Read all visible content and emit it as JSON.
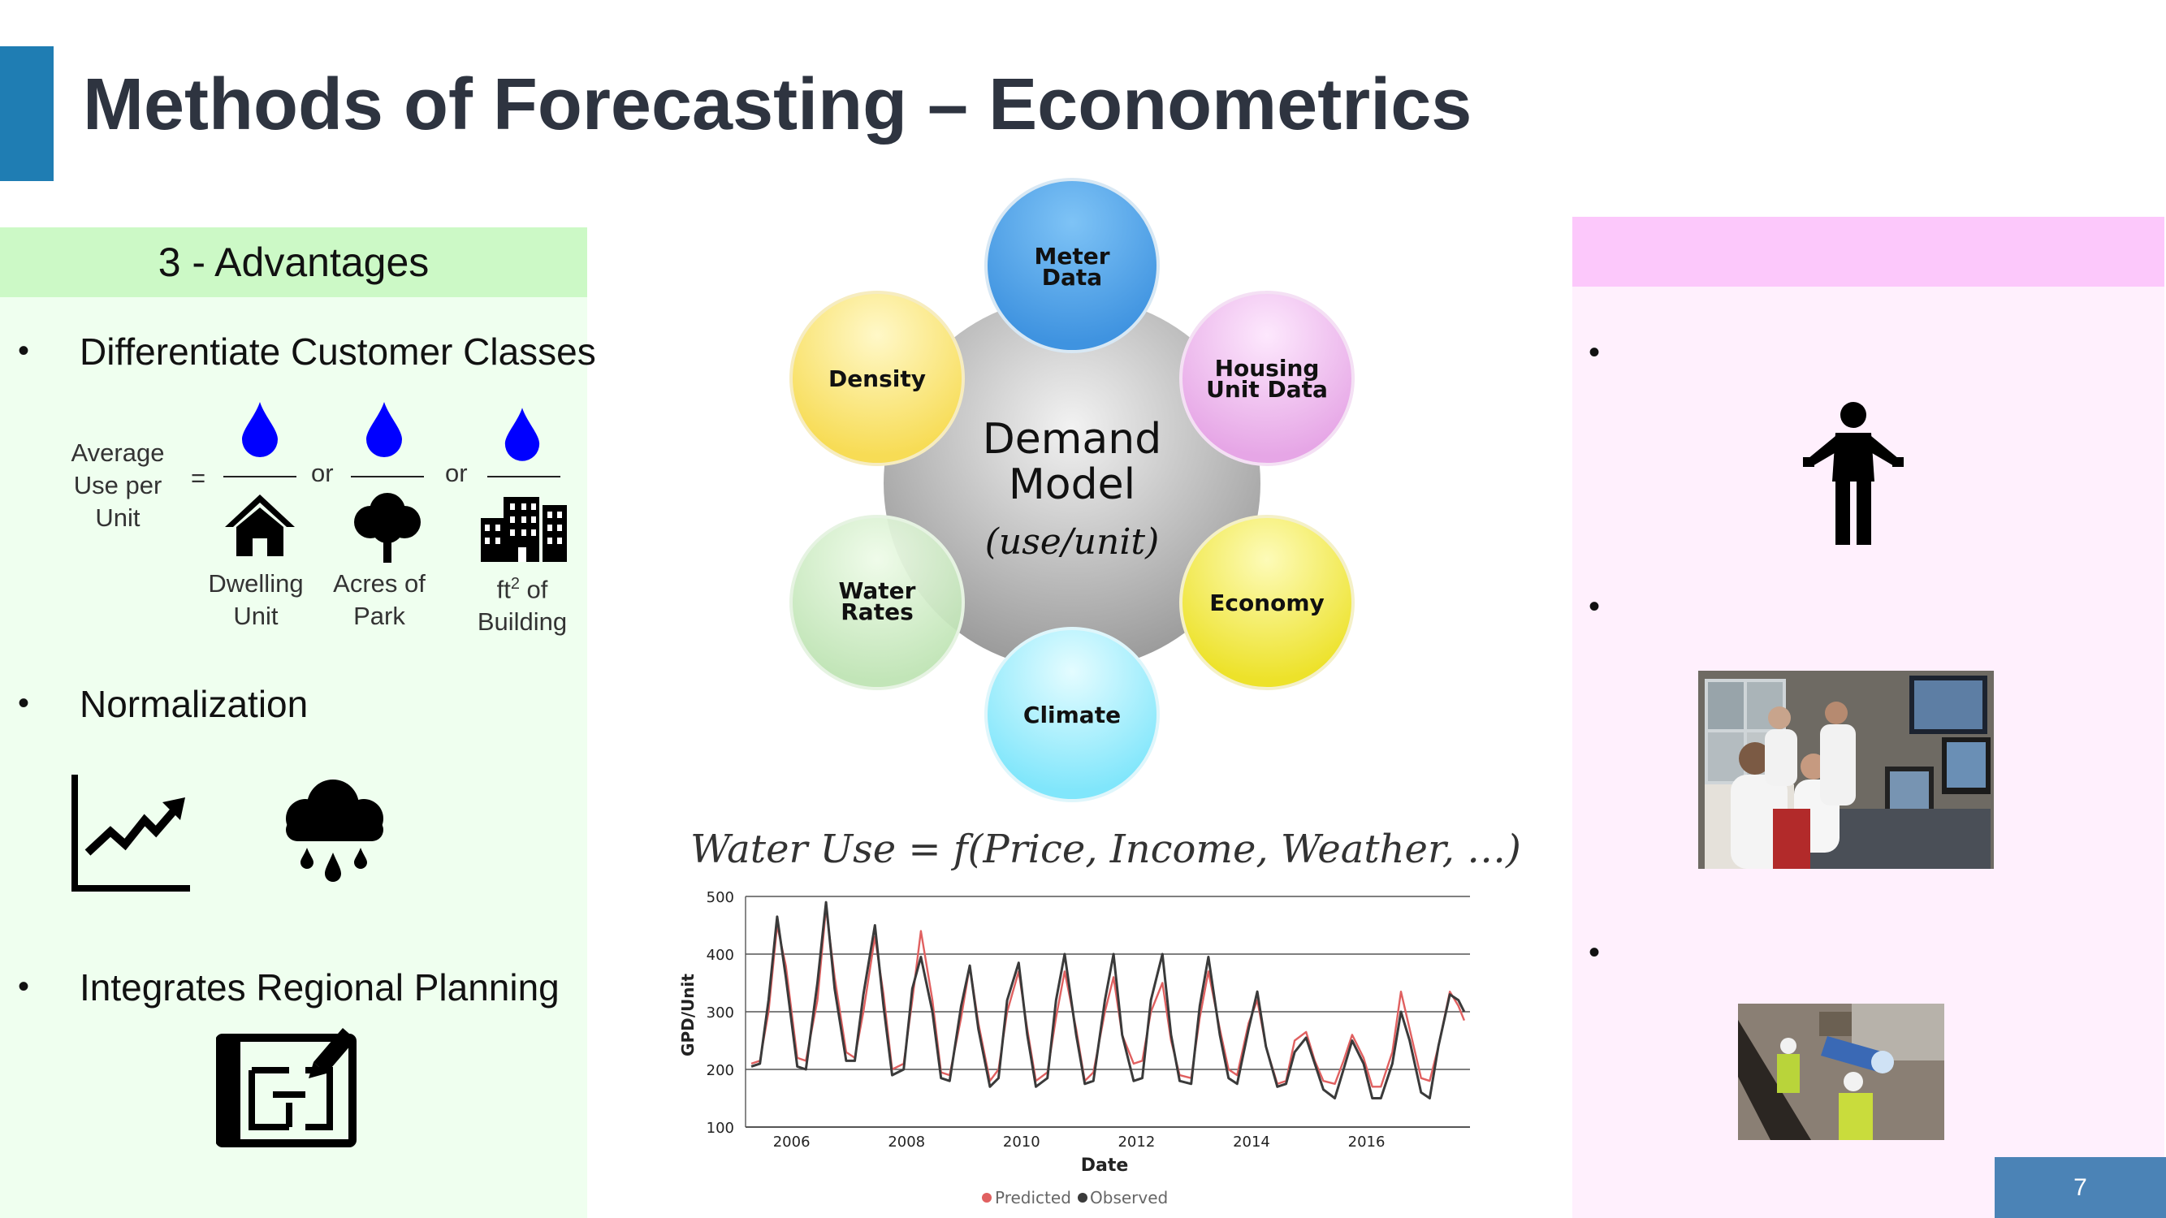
{
  "slide": {
    "title": "Methods of Forecasting – Econometrics",
    "page_number": "7"
  },
  "advantages": {
    "heading": "3 - Advantages",
    "items": [
      "Differentiate Customer Classes",
      "Normalization",
      "Integrates Regional Planning"
    ],
    "avg_use": {
      "line1": "Average",
      "line2": "Use per",
      "line3": "Unit"
    },
    "equals": "=",
    "or": "or",
    "units": [
      {
        "line1": "Dwelling",
        "line2": "Unit"
      },
      {
        "line1": "Acres of",
        "line2": "Park"
      },
      {
        "line1": "ft",
        "sup": "2",
        "line1b": " of",
        "line2": "Building"
      }
    ],
    "colors": {
      "drop": "#0000ff",
      "heading_bg": "#ccf9c6",
      "panel_bg": "#efffef"
    }
  },
  "demand_model": {
    "center": {
      "line1": "Demand",
      "line2": "Model",
      "line3": "(use/unit)"
    },
    "factors": [
      {
        "line1": "Meter",
        "line2": "Data",
        "color": "#4ba3e6"
      },
      {
        "line1": "Housing",
        "line2": "Unit Data",
        "color": "#eeb6ee"
      },
      {
        "line1": "Economy",
        "line2": "",
        "color": "#f0ec2e"
      },
      {
        "line1": "Climate",
        "line2": "",
        "color": "#8eecfb"
      },
      {
        "line1": "Water",
        "line2": "Rates",
        "color": "#c7eac0"
      },
      {
        "line1": "Density",
        "line2": "",
        "color": "#fbe76a"
      }
    ]
  },
  "formula": "Water Use = f(Price, Income, Weather, …)",
  "chart_data": {
    "type": "line",
    "xlabel": "Date",
    "ylabel": "GPD/Unit",
    "ylim": [
      100,
      500
    ],
    "yticks": [
      100,
      200,
      300,
      400,
      500
    ],
    "xticks": [
      2006,
      2008,
      2010,
      2012,
      2014,
      2016
    ],
    "xlim": [
      2005.2,
      2017.8
    ],
    "grid": true,
    "legend_placement": "bottom",
    "series": [
      {
        "name": "Predicted",
        "color": "#e06060",
        "x": [
          2005.3,
          2005.45,
          2005.6,
          2005.75,
          2005.9,
          2006.1,
          2006.25,
          2006.45,
          2006.6,
          2006.75,
          2006.95,
          2007.1,
          2007.25,
          2007.45,
          2007.6,
          2007.75,
          2007.95,
          2008.1,
          2008.25,
          2008.45,
          2008.6,
          2008.75,
          2008.95,
          2009.1,
          2009.25,
          2009.45,
          2009.6,
          2009.75,
          2009.95,
          2010.1,
          2010.25,
          2010.45,
          2010.6,
          2010.75,
          2010.95,
          2011.1,
          2011.25,
          2011.45,
          2011.6,
          2011.75,
          2011.95,
          2012.1,
          2012.25,
          2012.45,
          2012.6,
          2012.75,
          2012.95,
          2013.1,
          2013.25,
          2013.45,
          2013.6,
          2013.75,
          2013.95,
          2014.1,
          2014.25,
          2014.45,
          2014.6,
          2014.75,
          2014.95,
          2015.1,
          2015.25,
          2015.45,
          2015.6,
          2015.75,
          2015.95,
          2016.1,
          2016.25,
          2016.45,
          2016.6,
          2016.75,
          2016.95,
          2017.1,
          2017.25,
          2017.45,
          2017.6,
          2017.7
        ],
        "y": [
          210,
          215,
          300,
          450,
          380,
          220,
          215,
          320,
          480,
          360,
          230,
          220,
          300,
          430,
          330,
          200,
          210,
          320,
          440,
          320,
          195,
          190,
          290,
          380,
          280,
          180,
          200,
          300,
          370,
          270,
          180,
          195,
          290,
          370,
          270,
          180,
          195,
          300,
          360,
          260,
          210,
          215,
          300,
          350,
          250,
          190,
          185,
          290,
          370,
          270,
          200,
          190,
          280,
          320,
          240,
          175,
          180,
          250,
          265,
          215,
          180,
          175,
          215,
          260,
          220,
          170,
          170,
          230,
          335,
          270,
          185,
          180,
          240,
          335,
          310,
          285
        ]
      },
      {
        "name": "Observed",
        "color": "#3a3a3a",
        "x": [
          2005.3,
          2005.45,
          2005.6,
          2005.75,
          2005.9,
          2006.1,
          2006.25,
          2006.45,
          2006.6,
          2006.75,
          2006.95,
          2007.1,
          2007.25,
          2007.45,
          2007.6,
          2007.75,
          2007.95,
          2008.1,
          2008.25,
          2008.45,
          2008.6,
          2008.75,
          2008.95,
          2009.1,
          2009.25,
          2009.45,
          2009.6,
          2009.75,
          2009.95,
          2010.1,
          2010.25,
          2010.45,
          2010.6,
          2010.75,
          2010.95,
          2011.1,
          2011.25,
          2011.45,
          2011.6,
          2011.75,
          2011.95,
          2012.1,
          2012.25,
          2012.45,
          2012.6,
          2012.75,
          2012.95,
          2013.1,
          2013.25,
          2013.45,
          2013.6,
          2013.75,
          2013.95,
          2014.1,
          2014.25,
          2014.45,
          2014.6,
          2014.75,
          2014.95,
          2015.1,
          2015.25,
          2015.45,
          2015.6,
          2015.75,
          2015.95,
          2016.1,
          2016.25,
          2016.45,
          2016.6,
          2016.75,
          2016.95,
          2017.1,
          2017.25,
          2017.45,
          2017.6,
          2017.7
        ],
        "y": [
          205,
          210,
          320,
          465,
          360,
          205,
          200,
          350,
          490,
          340,
          215,
          215,
          330,
          450,
          310,
          190,
          200,
          340,
          395,
          300,
          185,
          180,
          310,
          380,
          270,
          170,
          185,
          320,
          385,
          260,
          170,
          185,
          320,
          400,
          260,
          175,
          180,
          320,
          400,
          260,
          180,
          185,
          320,
          400,
          260,
          180,
          175,
          310,
          395,
          260,
          185,
          175,
          270,
          335,
          240,
          170,
          175,
          230,
          255,
          210,
          165,
          150,
          200,
          250,
          210,
          150,
          150,
          210,
          300,
          250,
          160,
          150,
          240,
          330,
          320,
          300
        ]
      }
    ]
  }
}
